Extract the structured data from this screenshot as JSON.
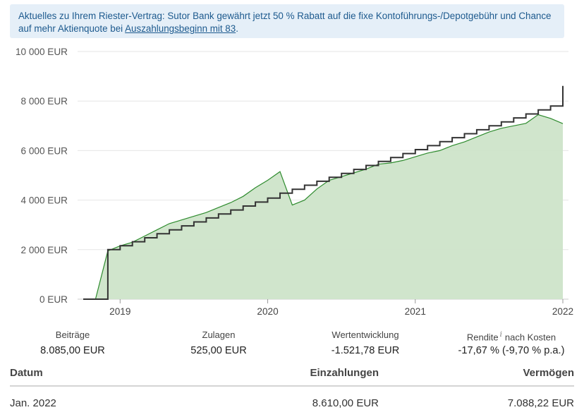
{
  "notice": {
    "text": "Aktuelles zu Ihrem Riester-Vertrag: Sutor Bank gewährt jetzt 50 % Rabatt auf die fixe Kontoführungs-/Depotgebühr und Chance auf mehr Aktienquote bei ",
    "link": "Auszahlungsbeginn mit 83",
    "suffix": "."
  },
  "colors": {
    "contributions_line": "#333333",
    "value_line": "#2e8b2e",
    "value_fill": "#cde4c9",
    "grid": "#e6e6e6"
  },
  "chart_data": {
    "type": "area",
    "title": "",
    "ylim": [
      0,
      10000
    ],
    "yticks": [
      {
        "value": 0,
        "label": "0 EUR"
      },
      {
        "value": 2000,
        "label": "2 000 EUR"
      },
      {
        "value": 4000,
        "label": "4 000 EUR"
      },
      {
        "value": 6000,
        "label": "6 000 EUR"
      },
      {
        "value": 8000,
        "label": "8 000 EUR"
      },
      {
        "value": 10000,
        "label": "10 000 EUR"
      }
    ],
    "xrange": [
      "2018-10",
      "2022-01"
    ],
    "xticks": [
      {
        "value": "2019-01",
        "label": "2019"
      },
      {
        "value": "2020-01",
        "label": "2020"
      },
      {
        "value": "2021-01",
        "label": "2021"
      },
      {
        "value": "2022-01",
        "label": "2022"
      }
    ],
    "grid": true,
    "series": [
      {
        "kind": "step-line",
        "x": [
          "2018-10",
          "2018-11",
          "2018-12",
          "2019-01",
          "2019-02",
          "2019-03",
          "2019-04",
          "2019-05",
          "2019-06",
          "2019-07",
          "2019-08",
          "2019-09",
          "2019-10",
          "2019-11",
          "2019-12",
          "2020-01",
          "2020-02",
          "2020-03",
          "2020-04",
          "2020-05",
          "2020-06",
          "2020-07",
          "2020-08",
          "2020-09",
          "2020-10",
          "2020-11",
          "2020-12",
          "2021-01",
          "2021-02",
          "2021-03",
          "2021-04",
          "2021-05",
          "2021-06",
          "2021-07",
          "2021-08",
          "2021-09",
          "2021-10",
          "2021-11",
          "2021-12",
          "2022-01"
        ],
        "values": [
          0,
          0,
          2000,
          2160,
          2320,
          2480,
          2640,
          2800,
          2960,
          3120,
          3280,
          3440,
          3600,
          3760,
          3920,
          4080,
          4280,
          4440,
          4600,
          4760,
          4920,
          5080,
          5240,
          5400,
          5560,
          5720,
          5880,
          6040,
          6200,
          6360,
          6520,
          6680,
          6840,
          7000,
          7160,
          7320,
          7480,
          7640,
          7800,
          8610
        ]
      },
      {
        "kind": "area",
        "x": [
          "2018-10",
          "2018-11",
          "2018-12",
          "2019-01",
          "2019-02",
          "2019-03",
          "2019-04",
          "2019-05",
          "2019-06",
          "2019-07",
          "2019-08",
          "2019-09",
          "2019-10",
          "2019-11",
          "2019-12",
          "2020-01",
          "2020-02",
          "2020-03",
          "2020-04",
          "2020-05",
          "2020-06",
          "2020-07",
          "2020-08",
          "2020-09",
          "2020-10",
          "2020-11",
          "2020-12",
          "2021-01",
          "2021-02",
          "2021-03",
          "2021-04",
          "2021-05",
          "2021-06",
          "2021-07",
          "2021-08",
          "2021-09",
          "2021-10",
          "2021-11",
          "2021-12",
          "2022-01"
        ],
        "values": [
          0,
          0,
          1950,
          2150,
          2300,
          2550,
          2800,
          3050,
          3200,
          3350,
          3500,
          3700,
          3900,
          4150,
          4500,
          4800,
          5150,
          3800,
          4000,
          4450,
          4800,
          4950,
          5100,
          5250,
          5450,
          5500,
          5600,
          5750,
          5900,
          6000,
          6200,
          6350,
          6550,
          6750,
          6900,
          7000,
          7100,
          7450,
          7300,
          7088
        ]
      }
    ]
  },
  "stats": [
    {
      "label": "Beiträge",
      "value": "8.085,00 EUR"
    },
    {
      "label": "Zulagen",
      "value": "525,00 EUR"
    },
    {
      "label": "Wertentwicklung",
      "value": "-1.521,78 EUR"
    },
    {
      "label": "Rendite",
      "label_suffix": "nach Kosten",
      "info_icon": "i",
      "value": "-17,67 % (-9,70 % p.a.)"
    }
  ],
  "table": {
    "headers": [
      "Datum",
      "Einzahlungen",
      "Vermögen"
    ],
    "rows": [
      [
        "Jan. 2022",
        "8.610,00 EUR",
        "7.088,22 EUR"
      ]
    ]
  }
}
